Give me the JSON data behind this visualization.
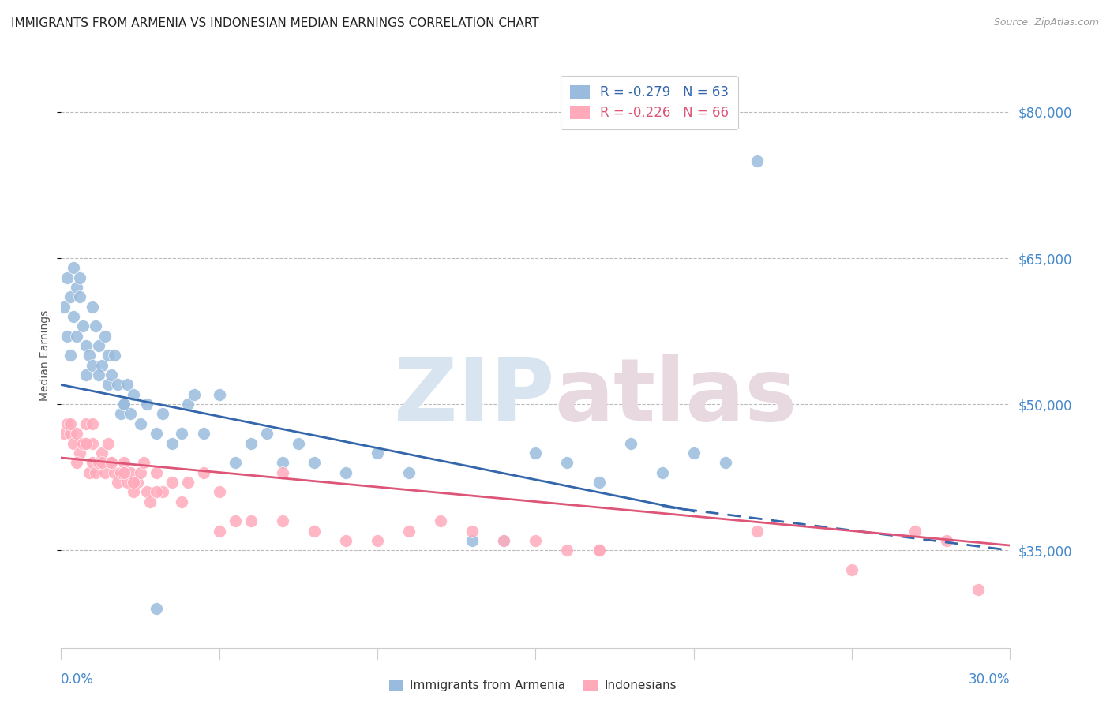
{
  "title": "IMMIGRANTS FROM ARMENIA VS INDONESIAN MEDIAN EARNINGS CORRELATION CHART",
  "source": "Source: ZipAtlas.com",
  "ylabel": "Median Earnings",
  "yticks": [
    35000,
    50000,
    65000,
    80000
  ],
  "ytick_labels": [
    "$35,000",
    "$50,000",
    "$65,000",
    "$80,000"
  ],
  "xlim": [
    0.0,
    30.0
  ],
  "ylim": [
    25000,
    85000
  ],
  "armenia_R": -0.279,
  "armenia_N": 63,
  "indonesia_R": -0.226,
  "indonesia_N": 66,
  "armenia_color": "#99BBDD",
  "indonesia_color": "#FFAABB",
  "armenia_line_color": "#3366AA",
  "indonesia_line_color": "#DD5577",
  "legend_label_armenia": "Immigrants from Armenia",
  "legend_label_indonesia": "Indonesians",
  "watermark_zip": "ZIP",
  "watermark_atlas": "atlas",
  "title_fontsize": 11,
  "axis_label_color": "#4488CC",
  "armenia_scatter_x": [
    0.1,
    0.2,
    0.2,
    0.3,
    0.3,
    0.4,
    0.5,
    0.5,
    0.6,
    0.7,
    0.8,
    0.8,
    0.9,
    1.0,
    1.0,
    1.1,
    1.2,
    1.3,
    1.4,
    1.5,
    1.5,
    1.6,
    1.7,
    1.8,
    1.9,
    2.0,
    2.1,
    2.2,
    2.3,
    2.5,
    2.7,
    3.0,
    3.2,
    3.5,
    3.8,
    4.0,
    4.2,
    4.5,
    5.0,
    5.5,
    6.0,
    6.5,
    7.0,
    7.5,
    8.0,
    9.0,
    10.0,
    11.0,
    13.0,
    14.0,
    15.0,
    16.0,
    17.0,
    18.0,
    19.0,
    20.0,
    21.0,
    0.4,
    0.6,
    1.2,
    2.0,
    3.0,
    22.0
  ],
  "armenia_scatter_y": [
    60000,
    63000,
    57000,
    61000,
    55000,
    59000,
    62000,
    57000,
    61000,
    58000,
    56000,
    53000,
    55000,
    60000,
    54000,
    58000,
    56000,
    54000,
    57000,
    55000,
    52000,
    53000,
    55000,
    52000,
    49000,
    50000,
    52000,
    49000,
    51000,
    48000,
    50000,
    47000,
    49000,
    46000,
    47000,
    50000,
    51000,
    47000,
    51000,
    44000,
    46000,
    47000,
    44000,
    46000,
    44000,
    43000,
    45000,
    43000,
    36000,
    36000,
    45000,
    44000,
    42000,
    46000,
    43000,
    45000,
    44000,
    64000,
    63000,
    53000,
    50000,
    29000,
    75000
  ],
  "indonesia_scatter_x": [
    0.1,
    0.2,
    0.3,
    0.4,
    0.5,
    0.6,
    0.7,
    0.8,
    0.9,
    1.0,
    1.0,
    1.1,
    1.2,
    1.3,
    1.4,
    1.5,
    1.6,
    1.7,
    1.8,
    1.9,
    2.0,
    2.1,
    2.2,
    2.3,
    2.4,
    2.5,
    2.6,
    2.7,
    2.8,
    3.0,
    3.2,
    3.5,
    3.8,
    4.0,
    4.5,
    5.0,
    5.5,
    6.0,
    7.0,
    8.0,
    9.0,
    10.0,
    11.0,
    12.0,
    13.0,
    14.0,
    15.0,
    16.0,
    17.0,
    0.3,
    0.5,
    0.8,
    1.0,
    1.3,
    1.6,
    2.0,
    2.3,
    3.0,
    5.0,
    7.0,
    17.0,
    22.0,
    25.0,
    27.0,
    28.0,
    29.0
  ],
  "indonesia_scatter_y": [
    47000,
    48000,
    47000,
    46000,
    47000,
    45000,
    46000,
    48000,
    43000,
    46000,
    44000,
    43000,
    44000,
    45000,
    43000,
    46000,
    44000,
    43000,
    42000,
    43000,
    44000,
    42000,
    43000,
    41000,
    42000,
    43000,
    44000,
    41000,
    40000,
    43000,
    41000,
    42000,
    40000,
    42000,
    43000,
    41000,
    38000,
    38000,
    38000,
    37000,
    36000,
    36000,
    37000,
    38000,
    37000,
    36000,
    36000,
    35000,
    35000,
    48000,
    44000,
    46000,
    48000,
    44000,
    44000,
    43000,
    42000,
    41000,
    37000,
    43000,
    35000,
    37000,
    33000,
    37000,
    36000,
    31000
  ],
  "armenia_line_x0": 0.0,
  "armenia_line_x1": 20.0,
  "armenia_line_y0": 52000,
  "armenia_line_y1": 39000,
  "armenia_dash_x0": 19.0,
  "armenia_dash_x1": 30.0,
  "armenia_dash_y0": 39500,
  "armenia_dash_y1": 35000,
  "indonesia_line_x0": 0.0,
  "indonesia_line_x1": 30.0,
  "indonesia_line_y0": 44500,
  "indonesia_line_y1": 35500
}
